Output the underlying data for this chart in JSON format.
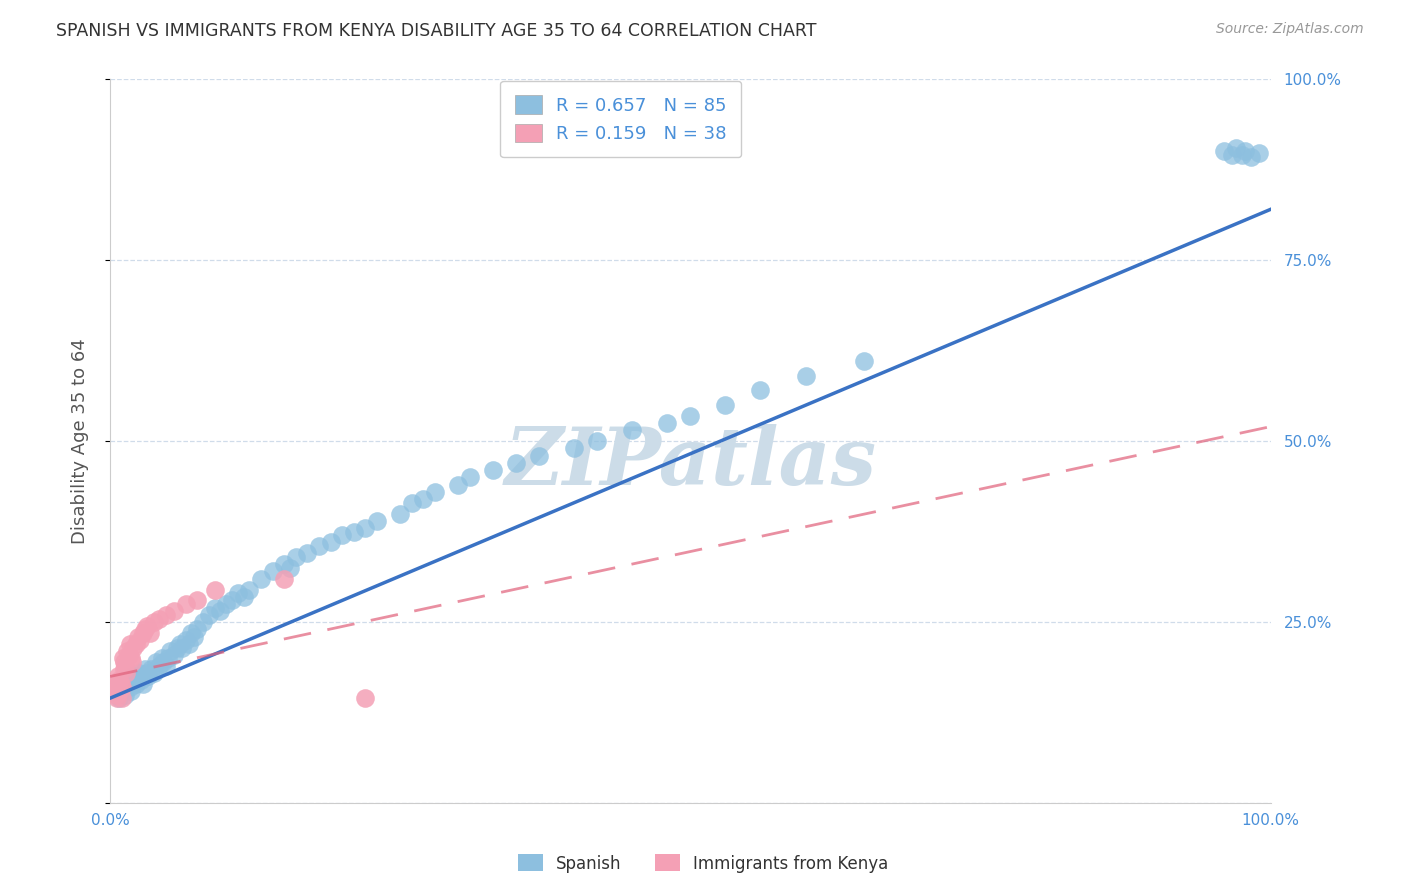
{
  "title": "SPANISH VS IMMIGRANTS FROM KENYA DISABILITY AGE 35 TO 64 CORRELATION CHART",
  "source": "Source: ZipAtlas.com",
  "ylabel": "Disability Age 35 to 64",
  "xlim": [
    0.0,
    1.0
  ],
  "ylim": [
    0.0,
    1.0
  ],
  "R_spanish": 0.657,
  "N_spanish": 85,
  "R_kenya": 0.159,
  "N_kenya": 38,
  "spanish_color": "#8dbfdf",
  "kenya_color": "#f4a0b5",
  "trendline_spanish_color": "#3a72c4",
  "trendline_kenya_color": "#e0607a",
  "watermark_text": "ZIPatlas",
  "watermark_color": "#ccdce8",
  "background_color": "#ffffff",
  "grid_color": "#d0dcea",
  "sp_trendline_x": [
    0.0,
    1.0
  ],
  "sp_trendline_y": [
    0.145,
    0.82
  ],
  "ke_trendline_x": [
    0.0,
    1.0
  ],
  "ke_trendline_y": [
    0.175,
    0.52
  ],
  "spanish_points_x": [
    0.005,
    0.008,
    0.008,
    0.01,
    0.012,
    0.013,
    0.015,
    0.016,
    0.017,
    0.018,
    0.02,
    0.021,
    0.022,
    0.023,
    0.025,
    0.026,
    0.027,
    0.028,
    0.03,
    0.032,
    0.033,
    0.035,
    0.038,
    0.04,
    0.042,
    0.045,
    0.046,
    0.048,
    0.05,
    0.052,
    0.055,
    0.058,
    0.06,
    0.062,
    0.065,
    0.068,
    0.07,
    0.072,
    0.075,
    0.08,
    0.085,
    0.09,
    0.095,
    0.1,
    0.105,
    0.11,
    0.115,
    0.12,
    0.13,
    0.14,
    0.15,
    0.155,
    0.16,
    0.17,
    0.18,
    0.19,
    0.2,
    0.21,
    0.22,
    0.23,
    0.25,
    0.26,
    0.27,
    0.28,
    0.3,
    0.31,
    0.33,
    0.35,
    0.37,
    0.4,
    0.42,
    0.45,
    0.48,
    0.5,
    0.53,
    0.56,
    0.6,
    0.65,
    0.96,
    0.967,
    0.97,
    0.975,
    0.978,
    0.983,
    0.99
  ],
  "spanish_points_y": [
    0.165,
    0.155,
    0.145,
    0.16,
    0.155,
    0.15,
    0.17,
    0.165,
    0.16,
    0.155,
    0.175,
    0.17,
    0.165,
    0.175,
    0.18,
    0.175,
    0.17,
    0.165,
    0.185,
    0.18,
    0.175,
    0.185,
    0.18,
    0.195,
    0.19,
    0.2,
    0.195,
    0.19,
    0.2,
    0.21,
    0.205,
    0.215,
    0.22,
    0.215,
    0.225,
    0.22,
    0.235,
    0.23,
    0.24,
    0.25,
    0.26,
    0.27,
    0.265,
    0.275,
    0.28,
    0.29,
    0.285,
    0.295,
    0.31,
    0.32,
    0.33,
    0.325,
    0.34,
    0.345,
    0.355,
    0.36,
    0.37,
    0.375,
    0.38,
    0.39,
    0.4,
    0.415,
    0.42,
    0.43,
    0.44,
    0.45,
    0.46,
    0.47,
    0.48,
    0.49,
    0.5,
    0.515,
    0.525,
    0.535,
    0.55,
    0.57,
    0.59,
    0.61,
    0.9,
    0.895,
    0.905,
    0.895,
    0.9,
    0.892,
    0.898
  ],
  "kenya_points_x": [
    0.003,
    0.004,
    0.005,
    0.006,
    0.006,
    0.007,
    0.008,
    0.008,
    0.009,
    0.01,
    0.01,
    0.011,
    0.012,
    0.012,
    0.013,
    0.014,
    0.015,
    0.016,
    0.017,
    0.018,
    0.019,
    0.02,
    0.022,
    0.024,
    0.026,
    0.028,
    0.03,
    0.032,
    0.034,
    0.038,
    0.042,
    0.048,
    0.055,
    0.065,
    0.075,
    0.09,
    0.15,
    0.22
  ],
  "kenya_points_y": [
    0.16,
    0.155,
    0.15,
    0.165,
    0.145,
    0.175,
    0.17,
    0.155,
    0.165,
    0.16,
    0.145,
    0.2,
    0.195,
    0.185,
    0.19,
    0.18,
    0.21,
    0.205,
    0.22,
    0.2,
    0.195,
    0.215,
    0.22,
    0.23,
    0.225,
    0.235,
    0.24,
    0.245,
    0.235,
    0.25,
    0.255,
    0.26,
    0.265,
    0.275,
    0.28,
    0.295,
    0.31,
    0.145
  ]
}
